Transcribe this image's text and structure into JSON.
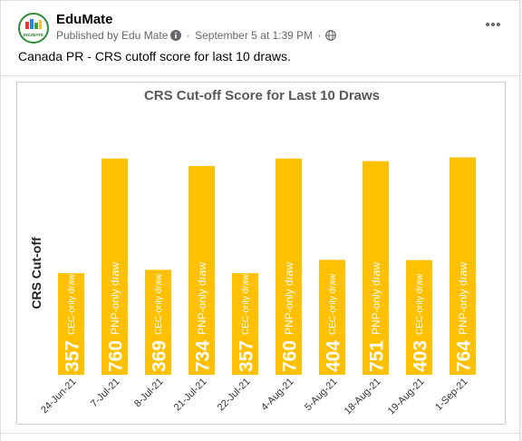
{
  "post": {
    "page_name": "EduMate",
    "publisher_text": "Published by Edu Mate",
    "date_text": "September 5 at 1:39 PM",
    "separator": "·",
    "avatar_text": "EDUMATE",
    "caption": "Canada PR - CRS cutoff score for last 10 draws."
  },
  "icons": {
    "info": "info-icon",
    "audience": "globe-icon",
    "more": "more-options-icon"
  },
  "colors": {
    "bar": "#ffc000",
    "bar_label": "#ffffff",
    "axis_text": "#333333"
  },
  "chart_data": {
    "type": "bar",
    "title": "CRS Cut-off Score for Last 10 Draws",
    "ylabel": "CRS Cut-off",
    "xlabel": "",
    "ylim": [
      0,
      800
    ],
    "categories": [
      "24-Jun-21",
      "7-Jul-21",
      "8-Jul-21",
      "21-Jul-21",
      "22-Jul-21",
      "4-Aug-21",
      "5-Aug-21",
      "18-Aug-21",
      "19-Aug-21",
      "1-Sep-21"
    ],
    "values": [
      357,
      760,
      369,
      734,
      357,
      760,
      404,
      751,
      403,
      764
    ],
    "draw_types": [
      "CEC-only draw",
      "PNP-only draw",
      "CEC-only draw",
      "PNP-only draw",
      "CEC-only draw",
      "PNP-only draw",
      "CEC-only draw",
      "PNP-only draw",
      "CEC-only draw",
      "PNP-only draw"
    ],
    "grid": false,
    "legend": "none"
  }
}
